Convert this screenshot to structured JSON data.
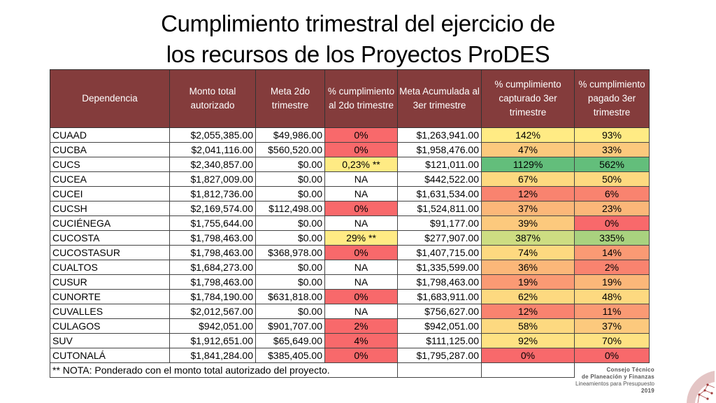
{
  "title": {
    "line1": "Cumplimiento trimestral del ejercicio de",
    "line2": "los recursos de los Proyectos ProDES"
  },
  "colors": {
    "header_bg": "#843c3c",
    "red": "#f8696b",
    "orange": "#fbb779",
    "light_orange": "#fcc97d",
    "yellow": "#ffeb84",
    "light_green": "#cddd82",
    "green": "#63be7b"
  },
  "table": {
    "headers": [
      "Dependencia",
      "Monto total autorizado",
      "Meta 2do trimestre",
      "% cumplimiento al 2do trimestre",
      "Meta Acumulada al 3er trimestre",
      "% cumplimiento capturado 3er trimestre",
      "% cumplimiento pagado 3er trimestre"
    ],
    "rows": [
      {
        "dep": "CUAAD",
        "monto": "$2,055,385.00",
        "meta2": "$49,986.00",
        "pct2": "0%",
        "pct2_color": "#f8696b",
        "meta3": "$1,263,941.00",
        "cap3": "142%",
        "cap3_color": "#ffeb84",
        "pag3": "93%",
        "pag3_color": "#ffeb84"
      },
      {
        "dep": "CUCBA",
        "monto": "$2,041,116.00",
        "meta2": "$560,520.00",
        "pct2": "0%",
        "pct2_color": "#f8696b",
        "meta3": "$1,958,476.00",
        "cap3": "47%",
        "cap3_color": "#fcc97d",
        "pag3": "33%",
        "pag3_color": "#fcc97d"
      },
      {
        "dep": "CUCS",
        "monto": "$2,340,857.00",
        "meta2": "$0.00",
        "pct2": "0,23% **",
        "pct2_color": "#ffeb84",
        "meta3": "$121,011.00",
        "cap3": "1129%",
        "cap3_color": "#63be7b",
        "pag3": "562%",
        "pag3_color": "#63be7b"
      },
      {
        "dep": "CUCEA",
        "monto": "$1,827,009.00",
        "meta2": "$0.00",
        "pct2": "NA",
        "pct2_color": "#ffffff",
        "meta3": "$442,522.00",
        "cap3": "67%",
        "cap3_color": "#fdd980",
        "pag3": "50%",
        "pag3_color": "#fdd980"
      },
      {
        "dep": "CUCEI",
        "monto": "$1,812,736.00",
        "meta2": "$0.00",
        "pct2": "NA",
        "pct2_color": "#ffffff",
        "meta3": "$1,631,534.00",
        "cap3": "12%",
        "cap3_color": "#f9836f",
        "pag3": "6%",
        "pag3_color": "#f9836f"
      },
      {
        "dep": "CUCSH",
        "monto": "$2,169,574.00",
        "meta2": "$112,498.00",
        "pct2": "0%",
        "pct2_color": "#f8696b",
        "meta3": "$1,524,811.00",
        "cap3": "37%",
        "cap3_color": "#fbb779",
        "pag3": "23%",
        "pag3_color": "#fbb779"
      },
      {
        "dep": "CUCIÉNEGA",
        "monto": "$1,755,644.00",
        "meta2": "$0.00",
        "pct2": "NA",
        "pct2_color": "#ffffff",
        "meta3": "$91,177.00",
        "cap3": "39%",
        "cap3_color": "#fcc97d",
        "pag3": "0%",
        "pag3_color": "#f8696b"
      },
      {
        "dep": "CUCOSTA",
        "monto": "$1,798,463.00",
        "meta2": "$0.00",
        "pct2": "29% **",
        "pct2_color": "#ffeb84",
        "meta3": "$277,907.00",
        "cap3": "387%",
        "cap3_color": "#cddd82",
        "pag3": "335%",
        "pag3_color": "#a9d27f"
      },
      {
        "dep": "CUCOSTASUR",
        "monto": "$1,798,463.00",
        "meta2": "$368,978.00",
        "pct2": "0%",
        "pct2_color": "#f8696b",
        "meta3": "$1,407,715.00",
        "cap3": "74%",
        "cap3_color": "#fdd980",
        "pag3": "14%",
        "pag3_color": "#fa9a74"
      },
      {
        "dep": "CUALTOS",
        "monto": "$1,684,273.00",
        "meta2": "$0.00",
        "pct2": "NA",
        "pct2_color": "#ffffff",
        "meta3": "$1,335,599.00",
        "cap3": "36%",
        "cap3_color": "#fbb779",
        "pag3": "2%",
        "pag3_color": "#f9836f"
      },
      {
        "dep": "CUSUR",
        "monto": "$1,798,463.00",
        "meta2": "$0.00",
        "pct2": "NA",
        "pct2_color": "#ffffff",
        "meta3": "$1,798,463.00",
        "cap3": "19%",
        "cap3_color": "#fa9a74",
        "pag3": "19%",
        "pag3_color": "#fbb779"
      },
      {
        "dep": "CUNORTE",
        "monto": "$1,784,190.00",
        "meta2": "$631,818.00",
        "pct2": "0%",
        "pct2_color": "#f8696b",
        "meta3": "$1,683,911.00",
        "cap3": "62%",
        "cap3_color": "#fdd980",
        "pag3": "48%",
        "pag3_color": "#fdd980"
      },
      {
        "dep": "CUVALLES",
        "monto": "$2,012,567.00",
        "meta2": "$0.00",
        "pct2": "NA",
        "pct2_color": "#ffffff",
        "meta3": "$756,627.00",
        "cap3": "12%",
        "cap3_color": "#f9836f",
        "pag3": "11%",
        "pag3_color": "#fa9a74"
      },
      {
        "dep": "CULAGOS",
        "monto": "$942,051.00",
        "meta2": "$901,707.00",
        "pct2": "2%",
        "pct2_color": "#f8696b",
        "meta3": "$942,051.00",
        "cap3": "58%",
        "cap3_color": "#fdd980",
        "pag3": "37%",
        "pag3_color": "#fcc97d"
      },
      {
        "dep": "SUV",
        "monto": "$1,912,651.00",
        "meta2": "$65,649.00",
        "pct2": "4%",
        "pct2_color": "#f8696b",
        "meta3": "$111,125.00",
        "cap3": "92%",
        "cap3_color": "#fee283",
        "pag3": "70%",
        "pag3_color": "#fee283"
      },
      {
        "dep": "CUTONALÁ",
        "monto": "$1,841,284.00",
        "meta2": "$385,405.00",
        "pct2": "0%",
        "pct2_color": "#f8696b",
        "meta3": "$1,795,287.00",
        "cap3": "0%",
        "cap3_color": "#f8696b",
        "pag3": "0%",
        "pag3_color": "#f8696b"
      }
    ],
    "note": "** NOTA: Ponderado con el monto total autorizado del proyecto."
  },
  "logo": {
    "line1": "Consejo Técnico",
    "line2": "de Planeación y Finanzas",
    "line3": "Lineamientos para Presupuesto",
    "line4": "2019"
  }
}
